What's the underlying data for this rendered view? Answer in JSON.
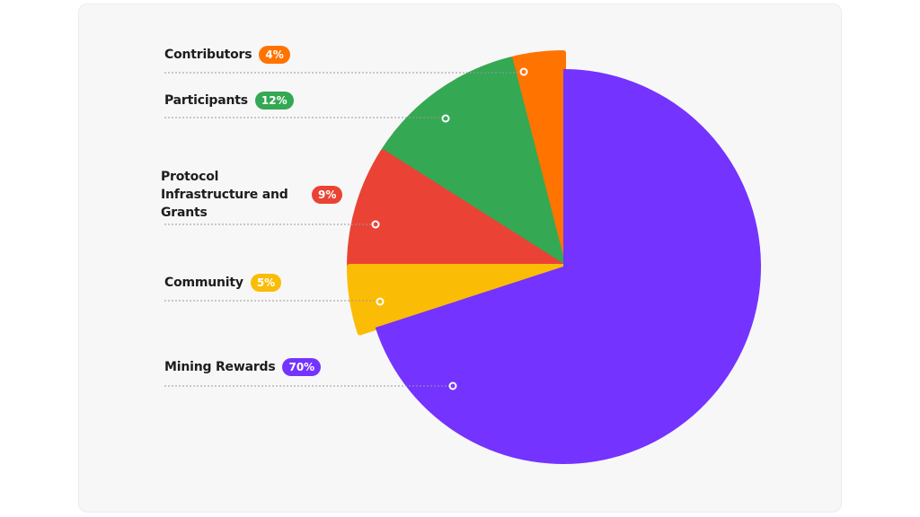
{
  "chart_data": {
    "type": "pie",
    "categories": [
      "Contributors",
      "Participants",
      "Protocol Infrastructure and Grants",
      "Community",
      "Mining Rewards"
    ],
    "values": [
      4,
      12,
      9,
      5,
      70
    ],
    "value_labels": [
      "4%",
      "12%",
      "9%",
      "5%",
      "70%"
    ],
    "colors": [
      "#ff7300",
      "#34a853",
      "#ea4335",
      "#fbbc05",
      "#7433ff"
    ]
  }
}
